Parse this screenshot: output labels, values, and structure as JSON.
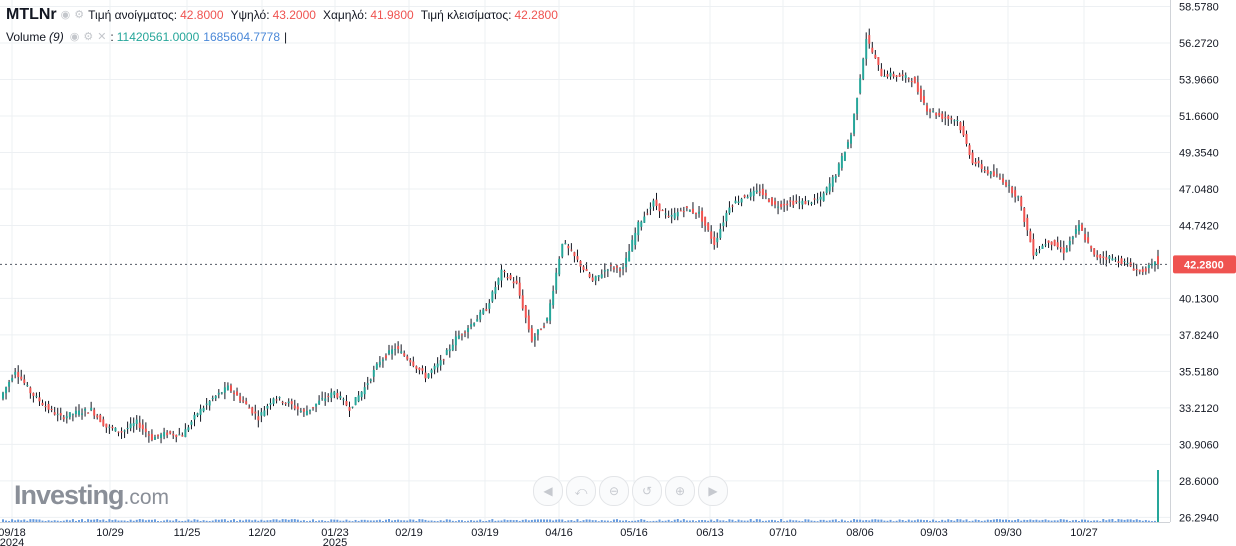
{
  "legend": {
    "symbol": "MTLNr",
    "open_label": "Τιμή ανοίγματος:",
    "open_value": "42.8000",
    "high_label": "Υψηλό:",
    "high_value": "43.2000",
    "low_label": "Χαμηλό:",
    "low_value": "41.9800",
    "close_label": "Τιμή κλεισίματος:",
    "close_value": "42.2800",
    "volume_label": "Volume",
    "volume_period": "(9)",
    "volume_value": "11420561.0000",
    "volume_ma_value": "1685604.7778",
    "separator": ":"
  },
  "logo": {
    "brand": "Investing",
    "suffix": ".com"
  },
  "nav_icons": [
    "rewind-icon",
    "pan-left-icon",
    "zoom-out-icon",
    "reset-icon",
    "zoom-in-icon",
    "forward-icon"
  ],
  "colors": {
    "up": "#26a69a",
    "down": "#ef5350",
    "volume": "#4a88d8",
    "price_tag": "#ef5350"
  },
  "chart_data": {
    "type": "candlestick",
    "title": "",
    "x_tick_labels": [
      "09/18",
      "10/29",
      "11/25",
      "12/20",
      "01/23",
      "02/19",
      "03/19",
      "04/16",
      "05/16",
      "06/13",
      "07/10",
      "08/06",
      "09/03",
      "09/30",
      "10/27"
    ],
    "x_year_labels": [
      {
        "after_tick": "09/18",
        "year": "2024"
      },
      {
        "after_tick": "01/23",
        "year": "2025"
      }
    ],
    "y_tick_labels": [
      "58.5780",
      "56.2720",
      "53.9660",
      "51.6600",
      "49.3540",
      "47.0480",
      "44.7420",
      "42.2800",
      "40.1300",
      "37.8240",
      "35.5180",
      "33.2120",
      "30.9060",
      "28.6000",
      "26.2940"
    ],
    "ylim": [
      26.0,
      58.8
    ],
    "last_price": 42.28,
    "grid": true,
    "weekly_closes": [
      33.8,
      35.6,
      34.2,
      33.3,
      32.6,
      32.9,
      33.1,
      32.0,
      31.7,
      32.3,
      31.3,
      31.6,
      31.5,
      32.9,
      33.8,
      34.5,
      33.6,
      32.6,
      33.9,
      33.5,
      32.9,
      33.6,
      34.2,
      33.2,
      34.5,
      36.2,
      37.0,
      36.2,
      35.2,
      36.1,
      37.6,
      38.5,
      39.5,
      41.8,
      41.0,
      37.5,
      38.8,
      43.7,
      42.5,
      41.2,
      42.1,
      42.0,
      44.8,
      46.2,
      45.2,
      45.8,
      45.5,
      43.6,
      46.0,
      46.6,
      46.9,
      46.0,
      46.2,
      46.2,
      46.4,
      48.0,
      50.5,
      56.6,
      54.3,
      54.2,
      54.0,
      52.1,
      51.6,
      51.4,
      48.8,
      48.1,
      47.6,
      46.5,
      43.0,
      43.8,
      43.1,
      44.7,
      42.8,
      42.7,
      42.4,
      41.8,
      42.28
    ],
    "volume_note": "last-bar volume 11420561.0000"
  }
}
